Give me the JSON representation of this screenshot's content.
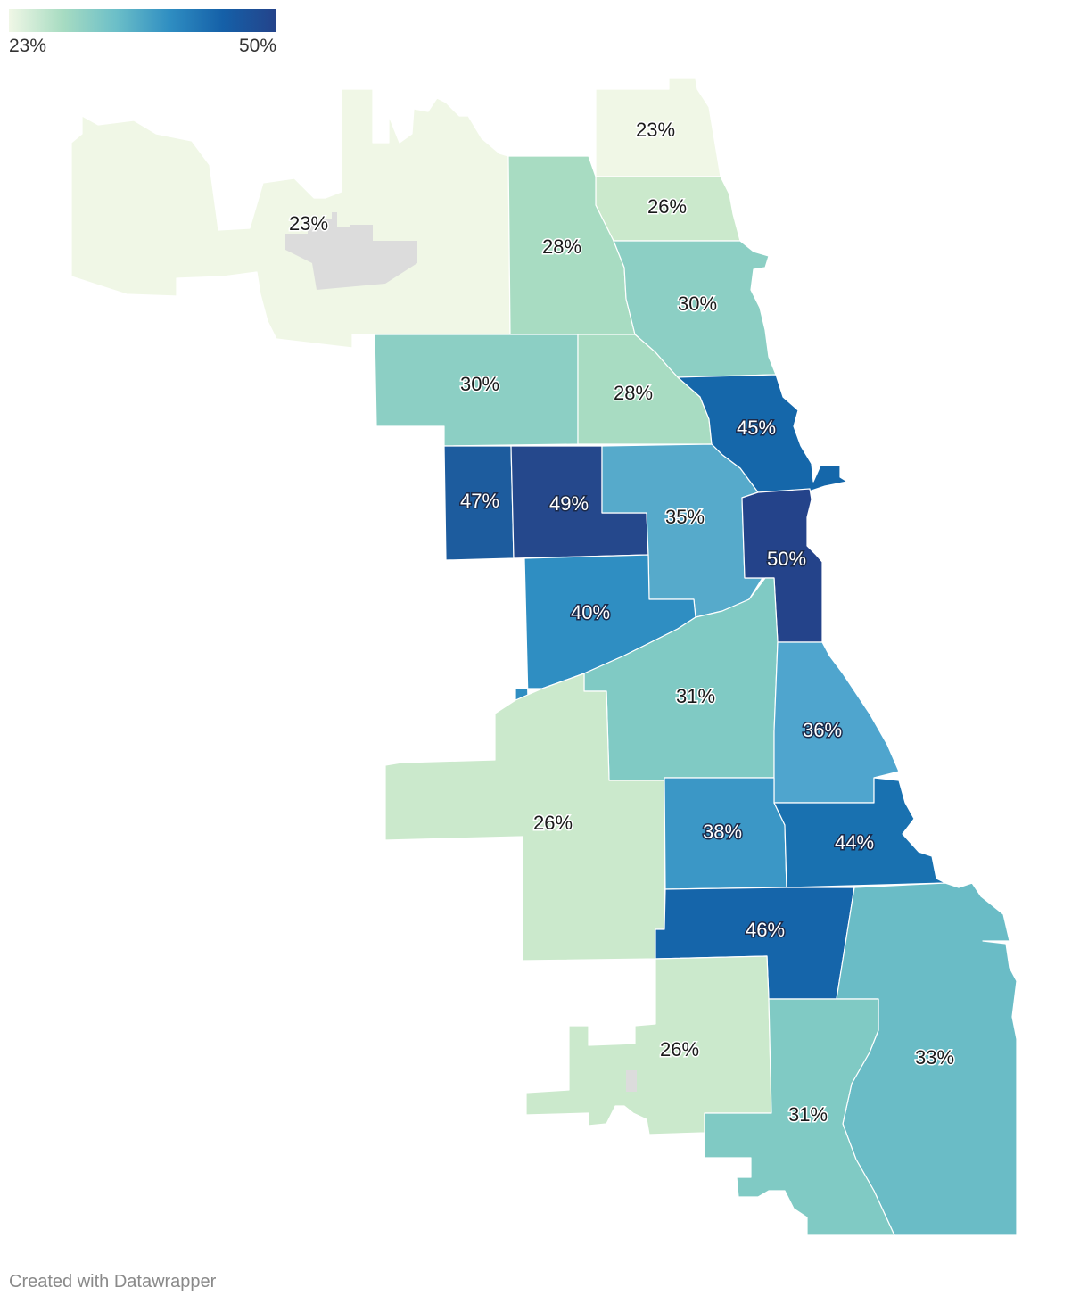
{
  "legend": {
    "min_label": "23%",
    "max_label": "50%",
    "gradient_colors": [
      "#f0f7e6",
      "#a8dcc2",
      "#6cbfc8",
      "#2f8ec2",
      "#1560a8",
      "#24438a"
    ]
  },
  "credit": "Created with Datawrapper",
  "colors": {
    "missing_data": "#dcdcdc",
    "region_border": "#ffffff"
  },
  "regions": [
    {
      "name": "northwest-large",
      "value": 23,
      "label": "23%",
      "color": "#f0f7e6"
    },
    {
      "name": "far-north-lakefront",
      "value": 23,
      "label": "23%",
      "color": "#f0f7e6"
    },
    {
      "name": "north-lakefront-upper",
      "value": 26,
      "label": "26%",
      "color": "#cbe9cc"
    },
    {
      "name": "north-central",
      "value": 28,
      "label": "28%",
      "color": "#a8dcc2"
    },
    {
      "name": "north-lakefront",
      "value": 30,
      "label": "30%",
      "color": "#8ccfc4"
    },
    {
      "name": "northwest-mid",
      "value": 30,
      "label": "30%",
      "color": "#8ccfc4"
    },
    {
      "name": "north-side-central",
      "value": 28,
      "label": "28%",
      "color": "#a8dcc2"
    },
    {
      "name": "near-north-lakefront",
      "value": 45,
      "label": "45%",
      "color": "#1567aa"
    },
    {
      "name": "west-side-far",
      "value": 47,
      "label": "47%",
      "color": "#1d5c9e"
    },
    {
      "name": "west-side",
      "value": 49,
      "label": "49%",
      "color": "#25488c"
    },
    {
      "name": "near-west",
      "value": 35,
      "label": "35%",
      "color": "#56aacb"
    },
    {
      "name": "loop-south-loop",
      "value": 50,
      "label": "50%",
      "color": "#24438a"
    },
    {
      "name": "southwest-inner",
      "value": 40,
      "label": "40%",
      "color": "#2f8ec2"
    },
    {
      "name": "south-central",
      "value": 31,
      "label": "31%",
      "color": "#80cac4"
    },
    {
      "name": "south-lakefront",
      "value": 36,
      "label": "36%",
      "color": "#4fa5ce"
    },
    {
      "name": "southwest-outer",
      "value": 26,
      "label": "26%",
      "color": "#cbe9cc"
    },
    {
      "name": "south-side-mid",
      "value": 38,
      "label": "38%",
      "color": "#3b97c6"
    },
    {
      "name": "south-shore",
      "value": 44,
      "label": "44%",
      "color": "#1971b0"
    },
    {
      "name": "far-south-central",
      "value": 46,
      "label": "46%",
      "color": "#1565aa"
    },
    {
      "name": "far-southeast",
      "value": 33,
      "label": "33%",
      "color": "#6abcc6"
    },
    {
      "name": "far-southwest",
      "value": 26,
      "label": "26%",
      "color": "#cbe9cc"
    },
    {
      "name": "far-south",
      "value": 31,
      "label": "31%",
      "color": "#80cac4"
    }
  ]
}
